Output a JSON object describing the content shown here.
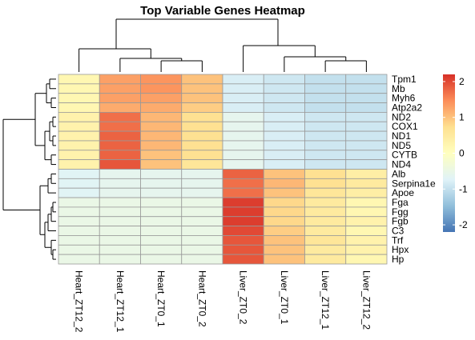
{
  "chart_data": {
    "type": "heatmap",
    "title": "Top Variable Genes Heatmap",
    "columns": [
      "Heart_ZT12_2",
      "Heart_ZT12_1",
      "Heart_ZT0_1",
      "Heart_ZT0_2",
      "Liver_ZT0_2",
      "Liver_ZT0_1",
      "Liver_ZT12_1",
      "Liver_ZT12_2"
    ],
    "rows": [
      "Tpm1",
      "Mb",
      "Myh6",
      "Atp2a2",
      "ND2",
      "COX1",
      "ND1",
      "ND5",
      "CYTB",
      "ND4",
      "Alb",
      "Serpina1e",
      "Apoe",
      "Fga",
      "Fgg",
      "Fgb",
      "C3",
      "Trf",
      "Hpx",
      "Hp"
    ],
    "values": [
      [
        0.2,
        1.3,
        1.4,
        1.0,
        -0.8,
        -0.9,
        -1.0,
        -1.0
      ],
      [
        0.2,
        1.3,
        1.4,
        1.0,
        -0.8,
        -0.9,
        -1.0,
        -1.0
      ],
      [
        0.2,
        1.3,
        1.3,
        1.0,
        -0.8,
        -0.9,
        -1.0,
        -1.0
      ],
      [
        0.2,
        1.2,
        1.2,
        0.9,
        -0.8,
        -0.9,
        -1.0,
        -1.0
      ],
      [
        0.3,
        1.7,
        1.1,
        0.7,
        -0.6,
        -0.8,
        -0.9,
        -0.9
      ],
      [
        0.3,
        1.7,
        1.1,
        0.7,
        -0.6,
        -0.8,
        -0.9,
        -0.9
      ],
      [
        0.3,
        1.8,
        1.1,
        0.7,
        -0.6,
        -0.8,
        -0.9,
        -0.9
      ],
      [
        0.3,
        1.8,
        1.1,
        0.7,
        -0.6,
        -0.8,
        -0.9,
        -0.9
      ],
      [
        0.3,
        1.8,
        1.0,
        0.7,
        -0.6,
        -0.8,
        -0.9,
        -0.9
      ],
      [
        0.3,
        1.9,
        1.0,
        0.6,
        -0.6,
        -0.8,
        -0.9,
        -0.9
      ],
      [
        -0.7,
        -0.6,
        -0.6,
        -0.6,
        1.8,
        1.0,
        0.7,
        0.4
      ],
      [
        -0.7,
        -0.6,
        -0.6,
        -0.6,
        1.7,
        1.1,
        0.7,
        0.5
      ],
      [
        -0.7,
        -0.6,
        -0.6,
        -0.6,
        1.7,
        1.0,
        0.6,
        0.4
      ],
      [
        -0.5,
        -0.5,
        -0.5,
        -0.5,
        2.1,
        0.8,
        0.5,
        0.2
      ],
      [
        -0.5,
        -0.5,
        -0.5,
        -0.5,
        2.1,
        0.8,
        0.5,
        0.2
      ],
      [
        -0.5,
        -0.5,
        -0.5,
        -0.5,
        2.1,
        0.8,
        0.5,
        0.3
      ],
      [
        -0.5,
        -0.5,
        -0.5,
        -0.5,
        2.0,
        0.9,
        0.5,
        0.2
      ],
      [
        -0.5,
        -0.5,
        -0.5,
        -0.5,
        1.9,
        1.0,
        0.6,
        0.3
      ],
      [
        -0.5,
        -0.5,
        -0.5,
        -0.5,
        1.9,
        1.0,
        0.5,
        0.3
      ],
      [
        -0.5,
        -0.5,
        -0.5,
        -0.5,
        1.9,
        1.0,
        0.5,
        0.2
      ]
    ],
    "color_scale": {
      "min": -2.2,
      "max": 2.2,
      "ticks": [
        2,
        1,
        0,
        -1,
        -2
      ],
      "colors": [
        "#4575B4",
        "#91BFDB",
        "#E0F3F8",
        "#FFFFBF",
        "#FEE090",
        "#FC8D59",
        "#D73027"
      ]
    },
    "legend_placement": "right"
  }
}
